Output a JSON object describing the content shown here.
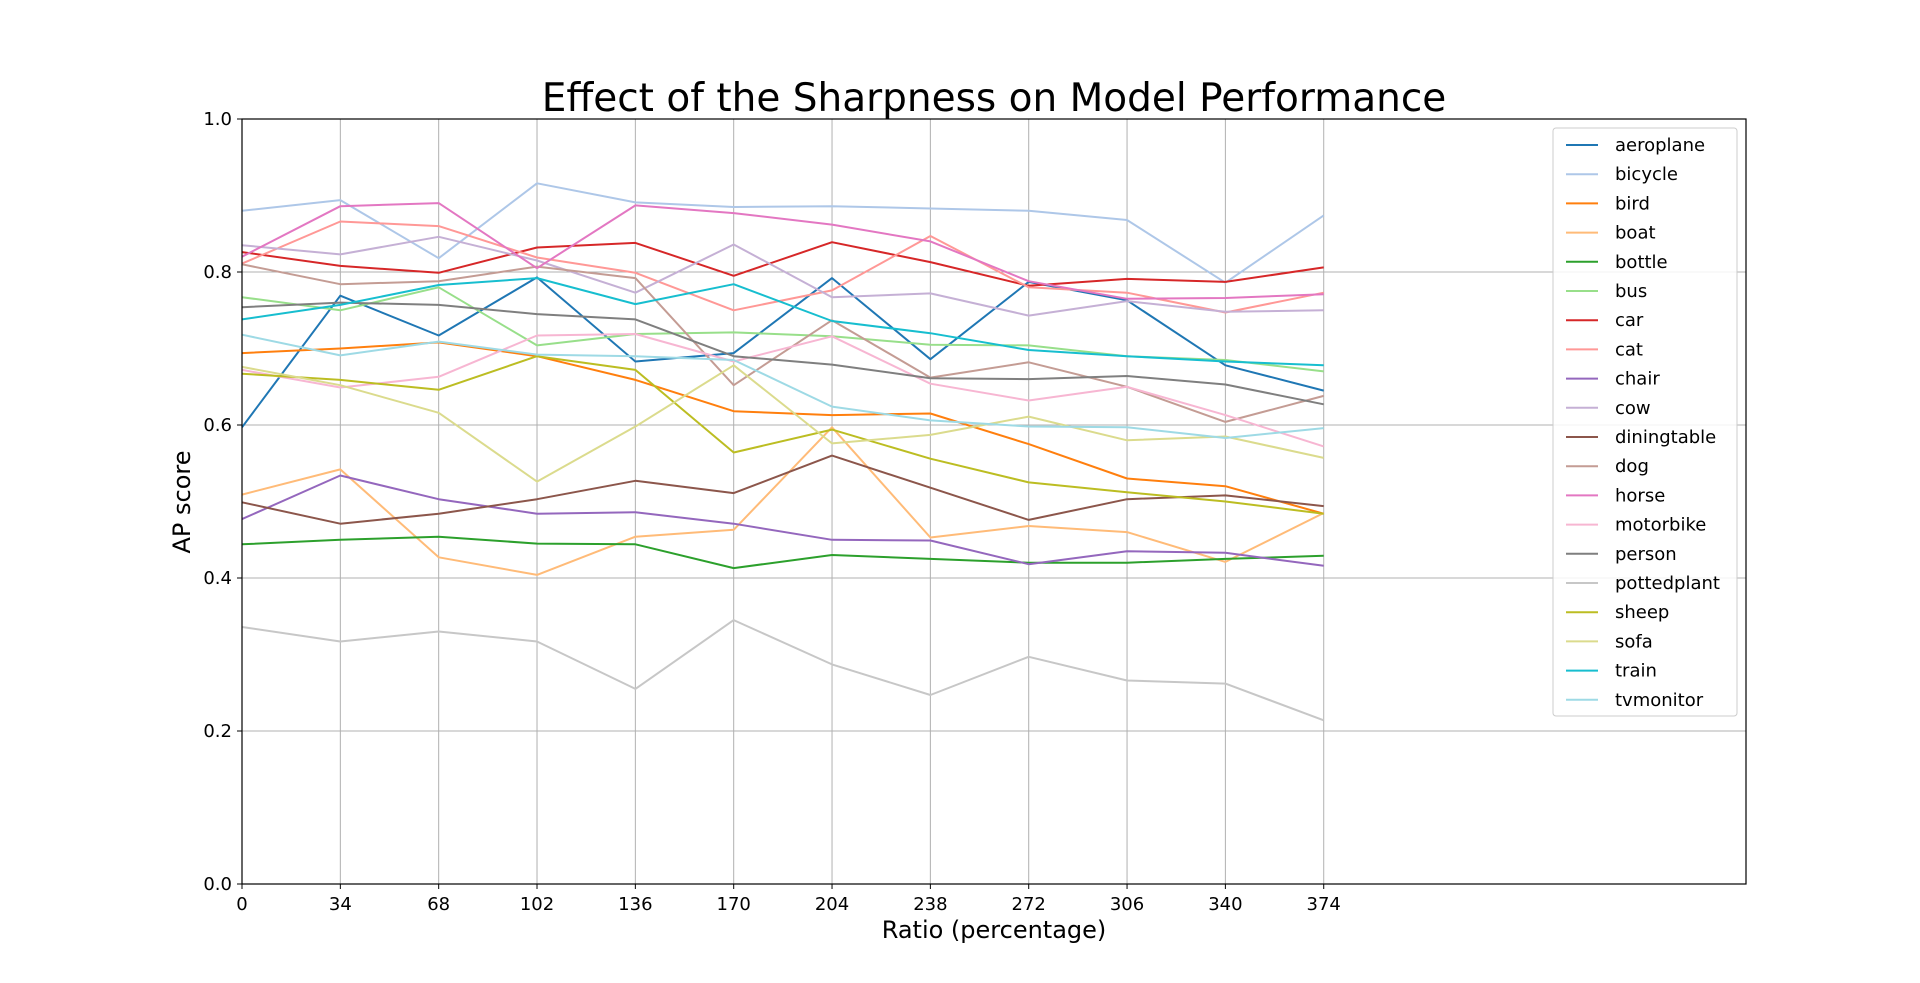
{
  "chart_data": {
    "type": "line",
    "title": "Effect of the Sharpness on Model Performance",
    "xlabel": "Ratio (percentage)",
    "ylabel": "AP score",
    "xlim": [
      0,
      520
    ],
    "ylim": [
      0.0,
      1.0
    ],
    "x_ticks": [
      0,
      34,
      68,
      102,
      136,
      170,
      204,
      238,
      272,
      306,
      340,
      374
    ],
    "y_ticks": [
      0.0,
      0.2,
      0.4,
      0.6,
      0.8,
      1.0
    ],
    "grid": true,
    "legend_position": "upper right",
    "x": [
      0,
      34,
      68,
      102,
      136,
      170,
      204,
      238,
      272,
      306,
      340,
      374
    ],
    "series": [
      {
        "name": "aeroplane",
        "color": "#1f77b4",
        "values": [
          0.597,
          0.769,
          0.717,
          0.793,
          0.683,
          0.694,
          0.792,
          0.686,
          0.787,
          0.763,
          0.678,
          0.645
        ]
      },
      {
        "name": "bicycle",
        "color": "#aec7e8",
        "values": [
          0.88,
          0.894,
          0.818,
          0.916,
          0.891,
          0.885,
          0.886,
          0.883,
          0.88,
          0.868,
          0.786,
          0.874
        ]
      },
      {
        "name": "bird",
        "color": "#ff7f0e",
        "values": [
          0.694,
          0.7,
          0.708,
          0.69,
          0.659,
          0.618,
          0.613,
          0.615,
          0.575,
          0.53,
          0.52,
          0.484
        ]
      },
      {
        "name": "boat",
        "color": "#ffbb78",
        "values": [
          0.509,
          0.542,
          0.427,
          0.404,
          0.454,
          0.463,
          0.597,
          0.453,
          0.468,
          0.46,
          0.421,
          0.485
        ]
      },
      {
        "name": "bottle",
        "color": "#2ca02c",
        "values": [
          0.444,
          0.45,
          0.454,
          0.445,
          0.444,
          0.413,
          0.43,
          0.425,
          0.42,
          0.42,
          0.425,
          0.429
        ]
      },
      {
        "name": "bus",
        "color": "#98df8a",
        "values": [
          0.767,
          0.75,
          0.78,
          0.704,
          0.719,
          0.721,
          0.716,
          0.705,
          0.704,
          0.69,
          0.685,
          0.67
        ]
      },
      {
        "name": "car",
        "color": "#d62728",
        "values": [
          0.826,
          0.808,
          0.799,
          0.832,
          0.838,
          0.795,
          0.839,
          0.813,
          0.782,
          0.791,
          0.787,
          0.806
        ]
      },
      {
        "name": "cat",
        "color": "#ff9896",
        "values": [
          0.811,
          0.866,
          0.86,
          0.819,
          0.799,
          0.75,
          0.776,
          0.847,
          0.78,
          0.773,
          0.747,
          0.773
        ]
      },
      {
        "name": "chair",
        "color": "#9467bd",
        "values": [
          0.477,
          0.534,
          0.503,
          0.484,
          0.486,
          0.471,
          0.45,
          0.449,
          0.418,
          0.435,
          0.433,
          0.416
        ]
      },
      {
        "name": "cow",
        "color": "#c5b0d5",
        "values": [
          0.835,
          0.823,
          0.846,
          0.815,
          0.773,
          0.836,
          0.767,
          0.772,
          0.743,
          0.762,
          0.748,
          0.75
        ]
      },
      {
        "name": "diningtable",
        "color": "#8c564b",
        "values": [
          0.499,
          0.471,
          0.484,
          0.503,
          0.527,
          0.511,
          0.56,
          0.518,
          0.476,
          0.503,
          0.508,
          0.494
        ]
      },
      {
        "name": "dog",
        "color": "#c49c94",
        "values": [
          0.81,
          0.784,
          0.788,
          0.807,
          0.792,
          0.652,
          0.737,
          0.662,
          0.682,
          0.65,
          0.604,
          0.638
        ]
      },
      {
        "name": "horse",
        "color": "#e377c2",
        "values": [
          0.82,
          0.886,
          0.89,
          0.805,
          0.887,
          0.877,
          0.862,
          0.84,
          0.788,
          0.765,
          0.766,
          0.771
        ]
      },
      {
        "name": "motorbike",
        "color": "#f7b6d2",
        "values": [
          0.672,
          0.649,
          0.663,
          0.717,
          0.719,
          0.683,
          0.716,
          0.654,
          0.632,
          0.65,
          0.613,
          0.572
        ]
      },
      {
        "name": "person",
        "color": "#7f7f7f",
        "values": [
          0.754,
          0.76,
          0.757,
          0.745,
          0.738,
          0.69,
          0.679,
          0.661,
          0.66,
          0.664,
          0.653,
          0.627
        ]
      },
      {
        "name": "pottedplant",
        "color": "#c7c7c7",
        "values": [
          0.336,
          0.317,
          0.33,
          0.317,
          0.255,
          0.345,
          0.287,
          0.247,
          0.297,
          0.266,
          0.262,
          0.214
        ]
      },
      {
        "name": "sheep",
        "color": "#bcbd22",
        "values": [
          0.667,
          0.659,
          0.646,
          0.69,
          0.672,
          0.564,
          0.594,
          0.556,
          0.525,
          0.512,
          0.5,
          0.484
        ]
      },
      {
        "name": "sofa",
        "color": "#dbdb8d",
        "values": [
          0.676,
          0.652,
          0.616,
          0.526,
          0.598,
          0.678,
          0.576,
          0.587,
          0.611,
          0.58,
          0.585,
          0.557
        ]
      },
      {
        "name": "train",
        "color": "#17becf",
        "values": [
          0.738,
          0.757,
          0.783,
          0.792,
          0.758,
          0.784,
          0.736,
          0.72,
          0.698,
          0.69,
          0.683,
          0.678
        ]
      },
      {
        "name": "tvmonitor",
        "color": "#9edae5",
        "values": [
          0.718,
          0.691,
          0.709,
          0.692,
          0.69,
          0.685,
          0.624,
          0.606,
          0.598,
          0.597,
          0.583,
          0.596
        ]
      }
    ]
  }
}
